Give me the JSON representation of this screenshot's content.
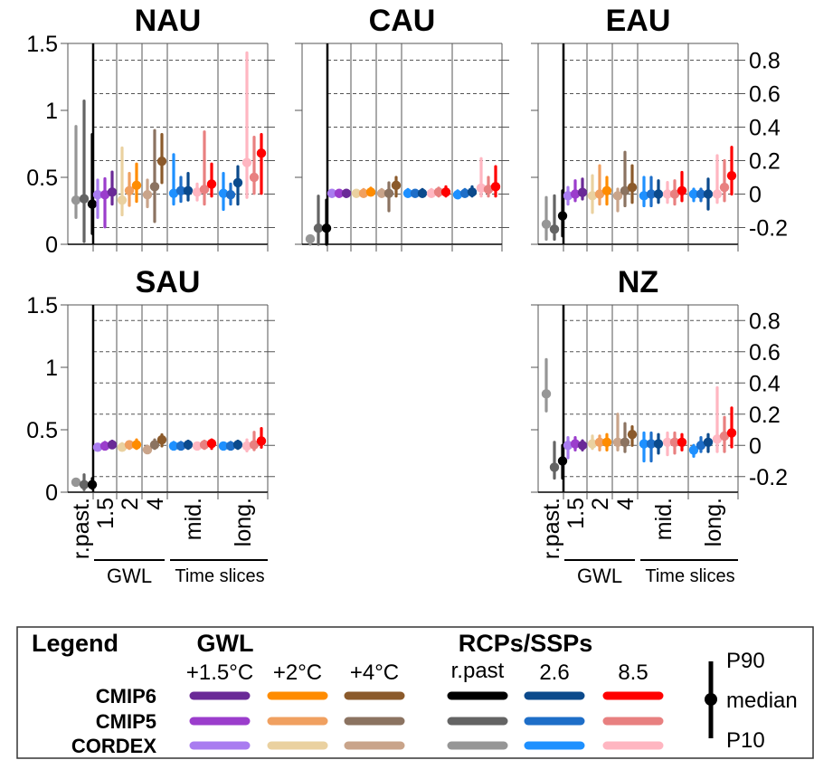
{
  "chart_data": [
    {
      "type": "scatter",
      "title": "NAU",
      "left_ticks": [
        "0",
        "0.5",
        "1",
        "1.5"
      ],
      "left_ylim": [
        0,
        1.5
      ],
      "right_ticks": [],
      "rpast": [
        {
          "cat": "cordex",
          "med": 0.33,
          "p10": 0.2,
          "p90": 0.88
        },
        {
          "cat": "cmip5",
          "med": 0.34,
          "p10": 0.02,
          "p90": 1.07
        },
        {
          "cat": "cmip6",
          "med": 0.3,
          "p10": 0.08,
          "p90": 0.82
        }
      ],
      "gwl": [
        [
          {
            "cat": "cordex",
            "med": 0.37,
            "p10": 0.2,
            "p90": 0.48
          },
          {
            "cat": "cmip5",
            "med": 0.37,
            "p10": 0.13,
            "p90": 0.49
          },
          {
            "cat": "cmip6",
            "med": 0.39,
            "p10": 0.3,
            "p90": 0.54
          }
        ],
        [
          {
            "cat": "cordex",
            "med": 0.33,
            "p10": 0.22,
            "p90": 0.72
          },
          {
            "cat": "cmip5",
            "med": 0.4,
            "p10": 0.29,
            "p90": 0.53
          },
          {
            "cat": "cmip6",
            "med": 0.44,
            "p10": 0.32,
            "p90": 0.6
          }
        ],
        [
          {
            "cat": "cordex",
            "med": 0.37,
            "p10": 0.28,
            "p90": 0.48
          },
          {
            "cat": "cmip5",
            "med": 0.43,
            "p10": 0.17,
            "p90": 0.85
          },
          {
            "cat": "cmip6",
            "med": 0.62,
            "p10": 0.46,
            "p90": 0.82
          }
        ]
      ],
      "ts": [
        [
          {
            "rcp": "2.6",
            "med": 0.38,
            "p10": 0.3,
            "p90": 0.67
          },
          {
            "rcp": "2.6",
            "med": 0.4,
            "p10": 0.32,
            "p90": 0.5
          },
          {
            "rcp": "2.6",
            "med": 0.4,
            "p10": 0.33,
            "p90": 0.53
          }
        ],
        [
          {
            "rcp": "8.5",
            "med": 0.39,
            "p10": 0.33,
            "p90": 0.45
          },
          {
            "rcp": "8.5",
            "med": 0.41,
            "p10": 0.3,
            "p90": 0.84
          },
          {
            "rcp": "8.5",
            "med": 0.45,
            "p10": 0.36,
            "p90": 0.6
          }
        ],
        [
          {
            "rcp": "2.6",
            "med": 0.38,
            "p10": 0.26,
            "p90": 0.53
          },
          {
            "rcp": "2.6",
            "med": 0.37,
            "p10": 0.3,
            "p90": 0.45
          },
          {
            "rcp": "2.6",
            "med": 0.46,
            "p10": 0.3,
            "p90": 0.58
          }
        ],
        [
          {
            "rcp": "8.5",
            "med": 0.61,
            "p10": 0.35,
            "p90": 1.43
          },
          {
            "rcp": "8.5",
            "med": 0.5,
            "p10": 0.38,
            "p90": 0.8
          },
          {
            "rcp": "8.5",
            "med": 0.68,
            "p10": 0.38,
            "p90": 0.82
          }
        ]
      ]
    },
    {
      "type": "scatter",
      "title": "CAU",
      "left_ticks": [],
      "right_ticks": [],
      "rpast": [
        {
          "cat": "cordex",
          "med": 0.04,
          "p10": 0.0,
          "p90": 0.06
        },
        {
          "cat": "cmip5",
          "med": 0.12,
          "p10": 0.0,
          "p90": 0.36
        },
        {
          "cat": "cmip6",
          "med": 0.12,
          "p10": 0.0,
          "p90": 0.33
        }
      ],
      "gwl": [
        [
          {
            "cat": "cordex",
            "med": 0.38,
            "p10": 0.36,
            "p90": 0.39
          },
          {
            "cat": "cmip5",
            "med": 0.38,
            "p10": 0.36,
            "p90": 0.4
          },
          {
            "cat": "cmip6",
            "med": 0.38,
            "p10": 0.37,
            "p90": 0.4
          }
        ],
        [
          {
            "cat": "cordex",
            "med": 0.38,
            "p10": 0.36,
            "p90": 0.4
          },
          {
            "cat": "cmip5",
            "med": 0.38,
            "p10": 0.36,
            "p90": 0.41
          },
          {
            "cat": "cmip6",
            "med": 0.39,
            "p10": 0.37,
            "p90": 0.42
          }
        ],
        [
          {
            "cat": "cordex",
            "med": 0.38,
            "p10": 0.36,
            "p90": 0.41
          },
          {
            "cat": "cmip5",
            "med": 0.38,
            "p10": 0.25,
            "p90": 0.46
          },
          {
            "cat": "cmip6",
            "med": 0.44,
            "p10": 0.36,
            "p90": 0.5
          }
        ]
      ],
      "ts": [
        [
          {
            "rcp": "2.6",
            "med": 0.38,
            "p10": 0.36,
            "p90": 0.41
          },
          {
            "rcp": "2.6",
            "med": 0.38,
            "p10": 0.36,
            "p90": 0.4
          },
          {
            "rcp": "2.6",
            "med": 0.38,
            "p10": 0.36,
            "p90": 0.41
          }
        ],
        [
          {
            "rcp": "8.5",
            "med": 0.38,
            "p10": 0.36,
            "p90": 0.41
          },
          {
            "rcp": "8.5",
            "med": 0.39,
            "p10": 0.36,
            "p90": 0.42
          },
          {
            "rcp": "8.5",
            "med": 0.39,
            "p10": 0.36,
            "p90": 0.43
          }
        ],
        [
          {
            "rcp": "2.6",
            "med": 0.37,
            "p10": 0.35,
            "p90": 0.4
          },
          {
            "rcp": "2.6",
            "med": 0.38,
            "p10": 0.36,
            "p90": 0.41
          },
          {
            "rcp": "2.6",
            "med": 0.39,
            "p10": 0.36,
            "p90": 0.43
          }
        ],
        [
          {
            "rcp": "8.5",
            "med": 0.42,
            "p10": 0.36,
            "p90": 0.64
          },
          {
            "rcp": "8.5",
            "med": 0.41,
            "p10": 0.36,
            "p90": 0.5
          },
          {
            "rcp": "8.5",
            "med": 0.43,
            "p10": 0.36,
            "p90": 0.58
          }
        ]
      ]
    },
    {
      "type": "scatter",
      "title": "EAU",
      "left_ticks": [],
      "right_ticks": [
        "-0.2",
        "0",
        "0.2",
        "0.4",
        "0.6",
        "0.8"
      ],
      "right_ylim": [
        -0.3,
        0.9
      ],
      "rpast": [
        {
          "cat": "cordex",
          "med": -0.18,
          "p10": -0.27,
          "p90": -0.02
        },
        {
          "cat": "cmip5",
          "med": -0.21,
          "p10": -0.27,
          "p90": -0.01
        },
        {
          "cat": "cmip6",
          "med": -0.13,
          "p10": -0.25,
          "p90": 0.02
        }
      ],
      "gwl": [
        [
          {
            "cat": "cordex",
            "med": -0.01,
            "p10": -0.06,
            "p90": 0.04
          },
          {
            "cat": "cmip5",
            "med": 0.0,
            "p10": -0.04,
            "p90": 0.08
          },
          {
            "cat": "cmip6",
            "med": 0.01,
            "p10": -0.03,
            "p90": 0.09
          }
        ],
        [
          {
            "cat": "cordex",
            "med": -0.01,
            "p10": -0.11,
            "p90": 0.11
          },
          {
            "cat": "cmip5",
            "med": 0.0,
            "p10": -0.06,
            "p90": 0.17
          },
          {
            "cat": "cmip6",
            "med": 0.02,
            "p10": -0.06,
            "p90": 0.1
          }
        ],
        [
          {
            "cat": "cordex",
            "med": -0.01,
            "p10": -0.1,
            "p90": 0.03
          },
          {
            "cat": "cmip5",
            "med": 0.02,
            "p10": -0.07,
            "p90": 0.25
          },
          {
            "cat": "cmip6",
            "med": 0.04,
            "p10": -0.05,
            "p90": 0.17
          }
        ]
      ],
      "ts": [
        [
          {
            "rcp": "2.6",
            "med": -0.01,
            "p10": -0.07,
            "p90": 0.1
          },
          {
            "rcp": "2.6",
            "med": 0.0,
            "p10": -0.07,
            "p90": 0.1
          },
          {
            "rcp": "2.6",
            "med": 0.0,
            "p10": -0.05,
            "p90": 0.08
          }
        ],
        [
          {
            "rcp": "8.5",
            "med": 0.0,
            "p10": -0.05,
            "p90": 0.07
          },
          {
            "rcp": "8.5",
            "med": 0.0,
            "p10": -0.06,
            "p90": 0.08
          },
          {
            "rcp": "8.5",
            "med": 0.02,
            "p10": -0.04,
            "p90": 0.13
          }
        ],
        [
          {
            "rcp": "2.6",
            "med": 0.0,
            "p10": -0.04,
            "p90": 0.03
          },
          {
            "rcp": "2.6",
            "med": 0.0,
            "p10": -0.04,
            "p90": 0.03
          },
          {
            "rcp": "2.6",
            "med": 0.0,
            "p10": -0.09,
            "p90": 0.09
          }
        ],
        [
          {
            "rcp": "8.5",
            "med": 0.0,
            "p10": -0.05,
            "p90": 0.23
          },
          {
            "rcp": "8.5",
            "med": 0.04,
            "p10": -0.04,
            "p90": 0.2
          },
          {
            "rcp": "8.5",
            "med": 0.11,
            "p10": 0.0,
            "p90": 0.28
          }
        ]
      ]
    },
    {
      "type": "scatter",
      "title": "SAU",
      "left_ticks": [
        "0",
        "0.5",
        "1",
        "1.5"
      ],
      "left_ylim": [
        0,
        1.5
      ],
      "right_ticks": [],
      "rpast": [
        {
          "cat": "cordex",
          "med": 0.08,
          "p10": 0.06,
          "p90": 0.1
        },
        {
          "cat": "cmip5",
          "med": 0.06,
          "p10": 0.02,
          "p90": 0.14
        },
        {
          "cat": "cmip6",
          "med": 0.06,
          "p10": 0.03,
          "p90": 0.11
        }
      ],
      "gwl": [
        [
          {
            "cat": "cordex",
            "med": 0.36,
            "p10": 0.35,
            "p90": 0.38
          },
          {
            "cat": "cmip5",
            "med": 0.37,
            "p10": 0.35,
            "p90": 0.4
          },
          {
            "cat": "cmip6",
            "med": 0.38,
            "p10": 0.36,
            "p90": 0.41
          }
        ],
        [
          {
            "cat": "cordex",
            "med": 0.36,
            "p10": 0.35,
            "p90": 0.39
          },
          {
            "cat": "cmip5",
            "med": 0.38,
            "p10": 0.35,
            "p90": 0.4
          },
          {
            "cat": "cmip6",
            "med": 0.38,
            "p10": 0.35,
            "p90": 0.42
          }
        ],
        [
          {
            "cat": "cordex",
            "med": 0.34,
            "p10": 0.33,
            "p90": 0.37
          },
          {
            "cat": "cmip5",
            "med": 0.38,
            "p10": 0.35,
            "p90": 0.42
          },
          {
            "cat": "cmip6",
            "med": 0.42,
            "p10": 0.37,
            "p90": 0.46
          }
        ]
      ],
      "ts": [
        [
          {
            "rcp": "2.6",
            "med": 0.37,
            "p10": 0.35,
            "p90": 0.4
          },
          {
            "rcp": "2.6",
            "med": 0.37,
            "p10": 0.35,
            "p90": 0.4
          },
          {
            "rcp": "2.6",
            "med": 0.38,
            "p10": 0.35,
            "p90": 0.41
          }
        ],
        [
          {
            "rcp": "8.5",
            "med": 0.37,
            "p10": 0.35,
            "p90": 0.39
          },
          {
            "rcp": "8.5",
            "med": 0.38,
            "p10": 0.35,
            "p90": 0.41
          },
          {
            "rcp": "8.5",
            "med": 0.39,
            "p10": 0.35,
            "p90": 0.42
          }
        ],
        [
          {
            "rcp": "2.6",
            "med": 0.37,
            "p10": 0.35,
            "p90": 0.39
          },
          {
            "rcp": "2.6",
            "med": 0.37,
            "p10": 0.35,
            "p90": 0.4
          },
          {
            "rcp": "2.6",
            "med": 0.38,
            "p10": 0.35,
            "p90": 0.41
          }
        ],
        [
          {
            "rcp": "8.5",
            "med": 0.37,
            "p10": 0.33,
            "p90": 0.42
          },
          {
            "rcp": "8.5",
            "med": 0.38,
            "p10": 0.34,
            "p90": 0.48
          },
          {
            "rcp": "8.5",
            "med": 0.41,
            "p10": 0.36,
            "p90": 0.51
          }
        ]
      ]
    },
    {
      "type": "scatter",
      "title": "NZ",
      "left_ticks": [],
      "right_ticks": [
        "-0.2",
        "0",
        "0.2",
        "0.4",
        "0.6",
        "0.8"
      ],
      "right_ylim": [
        -0.3,
        0.9
      ],
      "rpast": [
        {
          "cat": "cordex",
          "med": 0.33,
          "p10": 0.22,
          "p90": 0.55
        },
        {
          "cat": "cmip5",
          "med": -0.14,
          "p10": -0.21,
          "p90": 0.02
        },
        {
          "cat": "cmip6",
          "med": -0.1,
          "p10": -0.21,
          "p90": 0.0
        }
      ],
      "gwl": [
        [
          {
            "cat": "cordex",
            "med": 0.0,
            "p10": -0.08,
            "p90": 0.05
          },
          {
            "cat": "cmip5",
            "med": 0.01,
            "p10": -0.03,
            "p90": 0.05
          },
          {
            "cat": "cmip6",
            "med": 0.0,
            "p10": -0.03,
            "p90": 0.03
          }
        ],
        [
          {
            "cat": "cordex",
            "med": 0.01,
            "p10": -0.02,
            "p90": 0.06
          },
          {
            "cat": "cmip5",
            "med": 0.02,
            "p10": -0.03,
            "p90": 0.06
          },
          {
            "cat": "cmip6",
            "med": 0.02,
            "p10": -0.03,
            "p90": 0.07
          }
        ],
        [
          {
            "cat": "cordex",
            "med": 0.02,
            "p10": -0.03,
            "p90": 0.2
          },
          {
            "cat": "cmip5",
            "med": 0.02,
            "p10": -0.04,
            "p90": 0.14
          },
          {
            "cat": "cmip6",
            "med": 0.07,
            "p10": 0.0,
            "p90": 0.12
          }
        ]
      ],
      "ts": [
        [
          {
            "rcp": "2.6",
            "med": 0.01,
            "p10": -0.1,
            "p90": 0.08
          },
          {
            "rcp": "2.6",
            "med": 0.01,
            "p10": -0.1,
            "p90": 0.08
          },
          {
            "rcp": "2.6",
            "med": 0.01,
            "p10": -0.05,
            "p90": 0.07
          }
        ],
        [
          {
            "rcp": "8.5",
            "med": 0.02,
            "p10": -0.06,
            "p90": 0.08
          },
          {
            "rcp": "8.5",
            "med": 0.02,
            "p10": -0.05,
            "p90": 0.08
          },
          {
            "rcp": "8.5",
            "med": 0.02,
            "p10": -0.03,
            "p90": 0.07
          }
        ],
        [
          {
            "rcp": "2.6",
            "med": -0.03,
            "p10": -0.07,
            "p90": 0.0
          },
          {
            "rcp": "2.6",
            "med": 0.0,
            "p10": -0.04,
            "p90": 0.05
          },
          {
            "rcp": "2.6",
            "med": 0.02,
            "p10": -0.04,
            "p90": 0.07
          }
        ],
        [
          {
            "rcp": "8.5",
            "med": 0.04,
            "p10": -0.04,
            "p90": 0.37
          },
          {
            "rcp": "8.5",
            "med": 0.06,
            "p10": -0.04,
            "p90": 0.18
          },
          {
            "rcp": "8.5",
            "med": 0.08,
            "p10": -0.01,
            "p90": 0.24
          }
        ]
      ]
    }
  ],
  "x_labels": {
    "rpast": "r.past.",
    "gwl": [
      "1.5",
      "2",
      "4"
    ],
    "ts": [
      "mid.",
      "long."
    ],
    "group_gwl": "GWL",
    "group_ts": "Time slices"
  },
  "colors": {
    "gwl": {
      "cmip6": [
        "#6a2a97",
        "#ff8c00",
        "#8b5a2b"
      ],
      "cmip5": [
        "#9b3dcc",
        "#f0a060",
        "#8b7361"
      ],
      "cordex": [
        "#a97cf0",
        "#ead1a0",
        "#c9a48a"
      ]
    },
    "rcp": {
      "cmip6": {
        "rpast": "#000000",
        "2.6": "#0b4a8c",
        "8.5": "#ff0000"
      },
      "cmip5": {
        "rpast": "#646464",
        "2.6": "#1e6ec8",
        "8.5": "#e88080"
      },
      "cordex": {
        "rpast": "#969696",
        "2.6": "#1e90ff",
        "8.5": "#ffb6c1"
      }
    }
  },
  "legend": {
    "title": "Legend",
    "gwl_heading": "GWL",
    "gwl_levels": [
      "+1.5°C",
      "+2°C",
      "+4°C"
    ],
    "rcp_heading": "RCPs/SSPs",
    "rcp_levels": [
      "r.past",
      "2.6",
      "8.5"
    ],
    "rows": [
      "CMIP6",
      "CMIP5",
      "CORDEX"
    ],
    "bar_labels": {
      "top": "P90",
      "mid": "median",
      "bottom": "P10"
    }
  }
}
